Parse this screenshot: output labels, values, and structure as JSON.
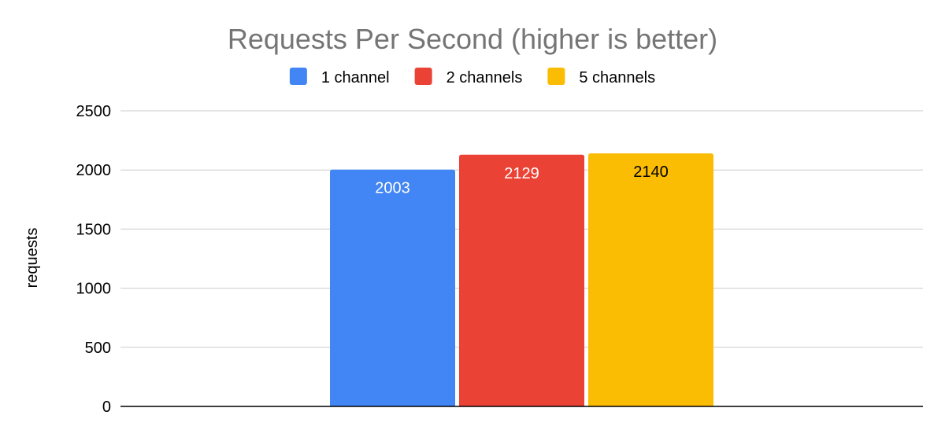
{
  "chart_data": {
    "type": "bar",
    "title": "Requests Per Second (higher is better)",
    "xlabel": "",
    "ylabel": "requests",
    "ylim": [
      0,
      2500
    ],
    "yticks": [
      0,
      500,
      1000,
      1500,
      2000,
      2500
    ],
    "grid": true,
    "legend_position": "top",
    "categories": [
      ""
    ],
    "series": [
      {
        "name": "1 channel",
        "values": [
          2003
        ],
        "color": "#4285f4",
        "label_color": "#ffffff"
      },
      {
        "name": "2 channels",
        "values": [
          2129
        ],
        "color": "#ea4335",
        "label_color": "#ffffff"
      },
      {
        "name": "5 channels",
        "values": [
          2140
        ],
        "color": "#fbbc04",
        "label_color": "#000000"
      }
    ],
    "title_color": "#757575",
    "gridline_color": "#cccccc",
    "axis_color": "#000000"
  }
}
